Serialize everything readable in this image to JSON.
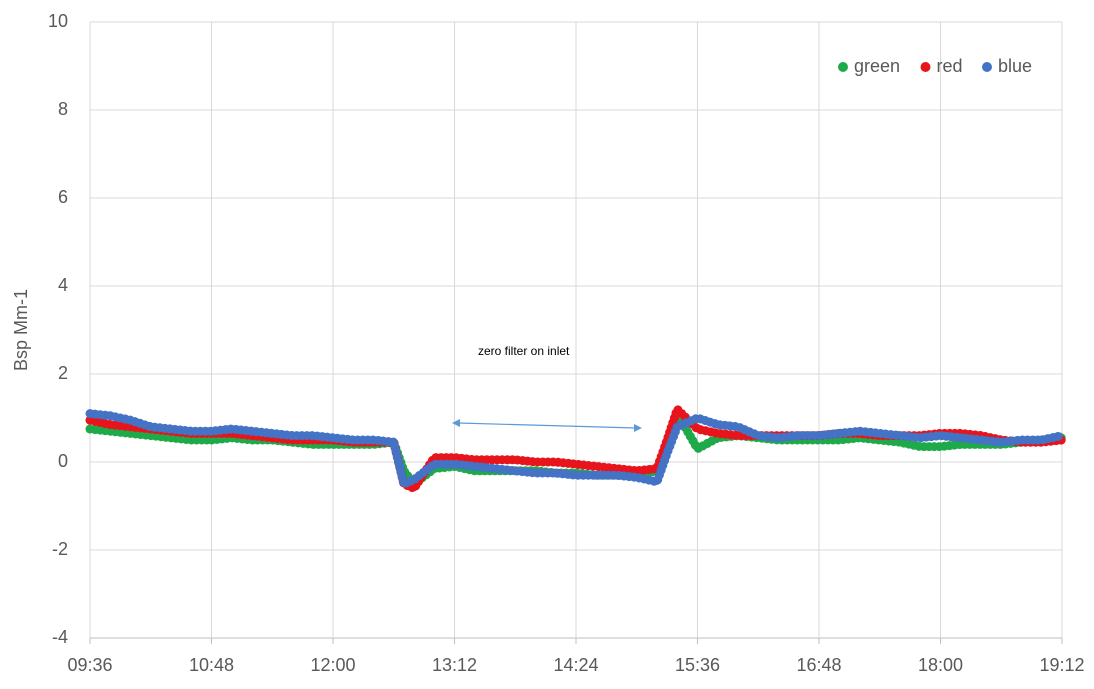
{
  "chart_data": {
    "type": "scatter",
    "y_label": "Bsp Mm-1",
    "annotation": "zero filter on inlet",
    "legend": "top-right",
    "grid": true,
    "xlim": [
      576,
      1152
    ],
    "xticks": [
      {
        "value": 576,
        "label": "09:36"
      },
      {
        "value": 648,
        "label": "10:48"
      },
      {
        "value": 720,
        "label": "12:00"
      },
      {
        "value": 792,
        "label": "13:12"
      },
      {
        "value": 864,
        "label": "14:24"
      },
      {
        "value": 936,
        "label": "15:36"
      },
      {
        "value": 1008,
        "label": "16:48"
      },
      {
        "value": 1080,
        "label": "18:00"
      },
      {
        "value": 1152,
        "label": "19:12"
      }
    ],
    "ylim": [
      -4,
      10
    ],
    "yticks": [
      -4,
      -2,
      0,
      2,
      4,
      6,
      8,
      10
    ],
    "x": [
      576,
      588,
      600,
      612,
      624,
      636,
      648,
      660,
      672,
      684,
      696,
      708,
      720,
      732,
      744,
      756,
      762,
      768,
      780,
      792,
      804,
      816,
      828,
      840,
      852,
      864,
      876,
      888,
      900,
      912,
      918,
      924,
      936,
      948,
      960,
      972,
      984,
      996,
      1008,
      1020,
      1032,
      1044,
      1056,
      1068,
      1080,
      1092,
      1104,
      1116,
      1128,
      1140,
      1152
    ],
    "series": [
      {
        "name": "green",
        "color": "#1faa4a",
        "values": [
          0.75,
          0.7,
          0.65,
          0.6,
          0.55,
          0.5,
          0.5,
          0.55,
          0.5,
          0.5,
          0.45,
          0.4,
          0.4,
          0.4,
          0.4,
          0.45,
          -0.2,
          -0.5,
          -0.15,
          -0.1,
          -0.2,
          -0.2,
          -0.2,
          -0.2,
          -0.25,
          -0.25,
          -0.3,
          -0.3,
          -0.3,
          -0.2,
          0.3,
          1.1,
          0.3,
          0.55,
          0.6,
          0.55,
          0.5,
          0.5,
          0.5,
          0.5,
          0.55,
          0.5,
          0.45,
          0.35,
          0.35,
          0.4,
          0.4,
          0.4,
          0.45,
          0.5,
          0.55
        ]
      },
      {
        "name": "red",
        "color": "#e8141c",
        "values": [
          0.95,
          0.85,
          0.8,
          0.75,
          0.7,
          0.65,
          0.65,
          0.65,
          0.6,
          0.55,
          0.5,
          0.5,
          0.5,
          0.45,
          0.45,
          0.45,
          -0.5,
          -0.6,
          0.1,
          0.1,
          0.05,
          0.05,
          0.05,
          0,
          0,
          -0.05,
          -0.1,
          -0.15,
          -0.2,
          -0.15,
          0.5,
          1.2,
          0.75,
          0.65,
          0.6,
          0.6,
          0.6,
          0.6,
          0.6,
          0.65,
          0.65,
          0.6,
          0.6,
          0.6,
          0.65,
          0.65,
          0.6,
          0.5,
          0.45,
          0.45,
          0.5
        ]
      },
      {
        "name": "blue",
        "color": "#4472c4",
        "values": [
          1.1,
          1.05,
          0.95,
          0.8,
          0.75,
          0.7,
          0.7,
          0.75,
          0.7,
          0.65,
          0.6,
          0.6,
          0.55,
          0.5,
          0.5,
          0.45,
          -0.5,
          -0.4,
          -0.05,
          -0.05,
          -0.1,
          -0.15,
          -0.2,
          -0.25,
          -0.25,
          -0.3,
          -0.3,
          -0.3,
          -0.35,
          -0.45,
          0.2,
          0.8,
          1.0,
          0.85,
          0.8,
          0.6,
          0.55,
          0.6,
          0.6,
          0.65,
          0.7,
          0.65,
          0.6,
          0.55,
          0.6,
          0.55,
          0.5,
          0.45,
          0.5,
          0.5,
          0.6
        ]
      }
    ]
  }
}
